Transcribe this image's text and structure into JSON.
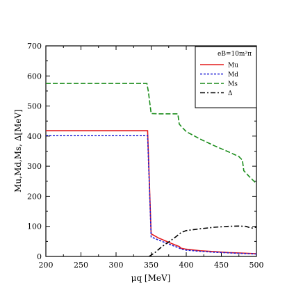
{
  "chart_data": {
    "type": "line",
    "xlabel": "μq [MeV]",
    "ylabel": "Mu,Md,Ms, Δ[MeV]",
    "xlim": [
      200,
      500
    ],
    "ylim": [
      0,
      700
    ],
    "xticks": [
      "200",
      "250",
      "300",
      "350",
      "400",
      "450",
      "500"
    ],
    "yticks": [
      "0",
      "100",
      "200",
      "300",
      "400",
      "500",
      "600",
      "700"
    ],
    "grid": false,
    "legend": {
      "position": "top-right",
      "title": "eB=10m²π"
    },
    "series": [
      {
        "name": "Mu",
        "color": "#e41a1c",
        "dash": "solid",
        "points": [
          [
            200,
            418
          ],
          [
            345,
            418
          ],
          [
            345,
            418
          ],
          [
            350,
            75
          ],
          [
            360,
            62
          ],
          [
            370,
            52
          ],
          [
            380,
            42
          ],
          [
            390,
            33
          ],
          [
            393,
            27
          ],
          [
            400,
            24
          ],
          [
            420,
            19
          ],
          [
            440,
            16
          ],
          [
            460,
            13
          ],
          [
            480,
            11
          ],
          [
            500,
            9
          ]
        ]
      },
      {
        "name": "Md",
        "color": "#1f1fd6",
        "dash": "dashed",
        "points": [
          [
            200,
            402
          ],
          [
            345,
            402
          ],
          [
            350,
            65
          ],
          [
            360,
            55
          ],
          [
            370,
            46
          ],
          [
            380,
            37
          ],
          [
            390,
            28
          ],
          [
            393,
            24
          ],
          [
            400,
            21
          ],
          [
            420,
            17
          ],
          [
            440,
            14
          ],
          [
            460,
            12
          ],
          [
            480,
            10
          ],
          [
            500,
            8
          ]
        ]
      },
      {
        "name": "Ms",
        "color": "#1a8c1a",
        "dash": "longdash",
        "points": [
          [
            200,
            575
          ],
          [
            344,
            575
          ],
          [
            346,
            548
          ],
          [
            350,
            475
          ],
          [
            360,
            474
          ],
          [
            370,
            474
          ],
          [
            380,
            474
          ],
          [
            388,
            474
          ],
          [
            390,
            440
          ],
          [
            393,
            432
          ],
          [
            400,
            415
          ],
          [
            420,
            390
          ],
          [
            440,
            368
          ],
          [
            460,
            348
          ],
          [
            475,
            332
          ],
          [
            480,
            320
          ],
          [
            482,
            285
          ],
          [
            490,
            265
          ],
          [
            500,
            242
          ]
        ]
      },
      {
        "name": "Δ",
        "color": "#000000",
        "dash": "dashdot",
        "points": [
          [
            347,
            0
          ],
          [
            355,
            12
          ],
          [
            365,
            32
          ],
          [
            375,
            48
          ],
          [
            385,
            65
          ],
          [
            393,
            80
          ],
          [
            400,
            86
          ],
          [
            420,
            92
          ],
          [
            440,
            97
          ],
          [
            460,
            100
          ],
          [
            475,
            101
          ],
          [
            485,
            100
          ],
          [
            490,
            96
          ],
          [
            495,
            94
          ],
          [
            500,
            98
          ]
        ]
      }
    ]
  }
}
